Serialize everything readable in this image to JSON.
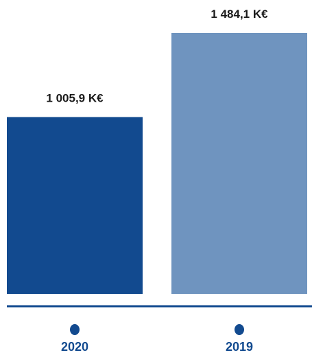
{
  "chart_data": {
    "type": "bar",
    "categories": [
      "2020",
      "2019"
    ],
    "values": [
      1005.9,
      1484.1
    ],
    "value_labels": [
      "1 005,9 K€",
      "1 484,1 K€"
    ],
    "unit": "K€",
    "ylim": [
      0,
      1484.1
    ],
    "grid": false,
    "legend": "none"
  },
  "colors": {
    "bars": [
      "#124a8f",
      "#6f94bf"
    ],
    "axis": "#124a8f",
    "markers": "#124a8f",
    "category_text": "#124a8f",
    "value_text": "#1a1a1a"
  }
}
